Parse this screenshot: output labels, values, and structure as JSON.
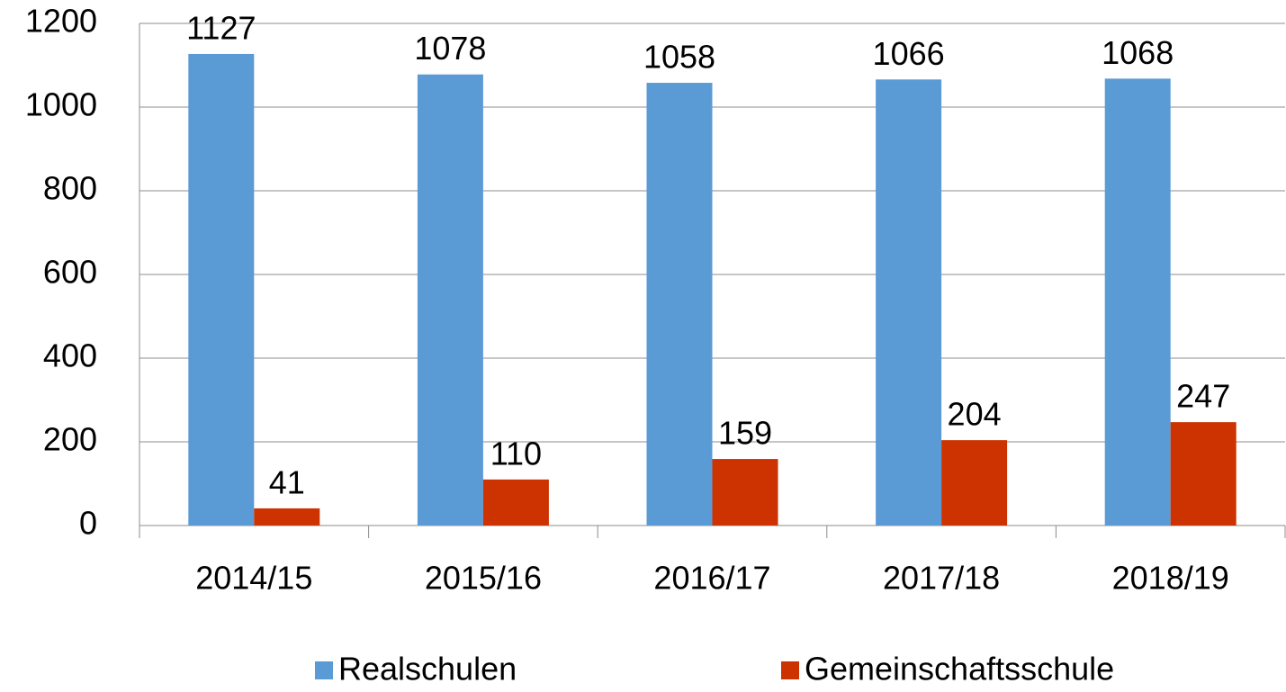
{
  "chart_data": {
    "type": "bar",
    "categories": [
      "2014/15",
      "2015/16",
      "2016/17",
      "2017/18",
      "2018/19"
    ],
    "series": [
      {
        "name": "Realschulen",
        "color": "#5b9bd5",
        "values": [
          1127,
          1078,
          1058,
          1066,
          1068
        ]
      },
      {
        "name": "Gemeinschaftsschule",
        "color": "#cc3300",
        "values": [
          41,
          110,
          159,
          204,
          247
        ]
      }
    ],
    "ylim": [
      0,
      1200
    ],
    "yticks": [
      0,
      200,
      400,
      600,
      800,
      1000,
      1200
    ],
    "grid": true,
    "legend": "bottom"
  }
}
